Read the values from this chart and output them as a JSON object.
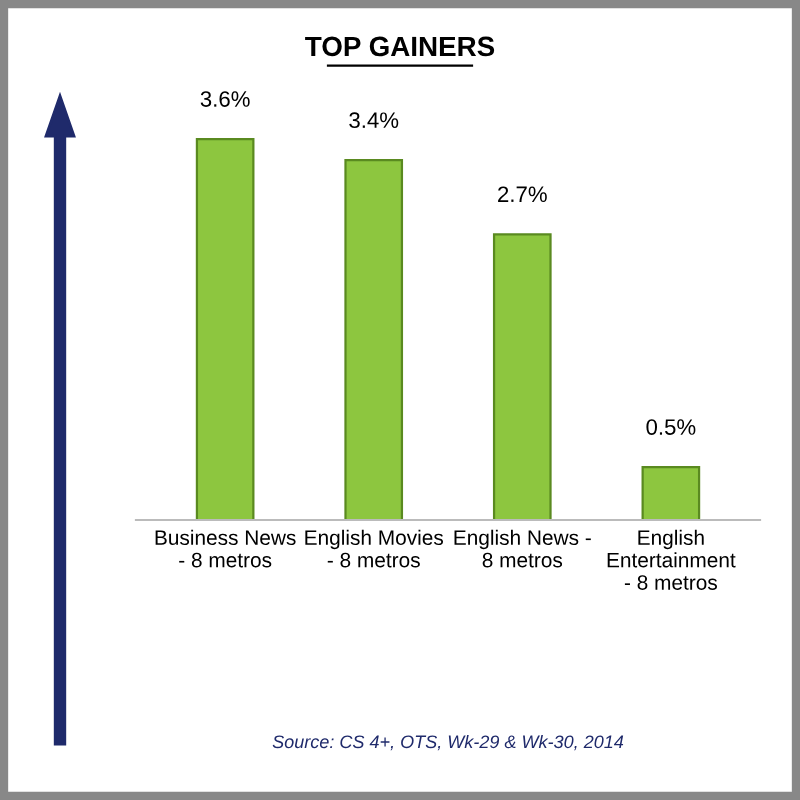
{
  "chart_data": {
    "type": "bar",
    "title": "TOP GAINERS",
    "categories": [
      "Business News\n- 8 metros",
      "English Movies\n- 8 metros",
      "English News -\n8 metros",
      "English\nEntertainment\n- 8 metros"
    ],
    "values": [
      3.6,
      3.4,
      2.7,
      0.5
    ],
    "value_labels": [
      "3.6%",
      "3.4%",
      "2.7%",
      "0.5%"
    ],
    "color": "#8dc63f",
    "annotations": [
      "Source: CS 4+, OTS, Wk-29 & Wk-30, 2014"
    ]
  }
}
